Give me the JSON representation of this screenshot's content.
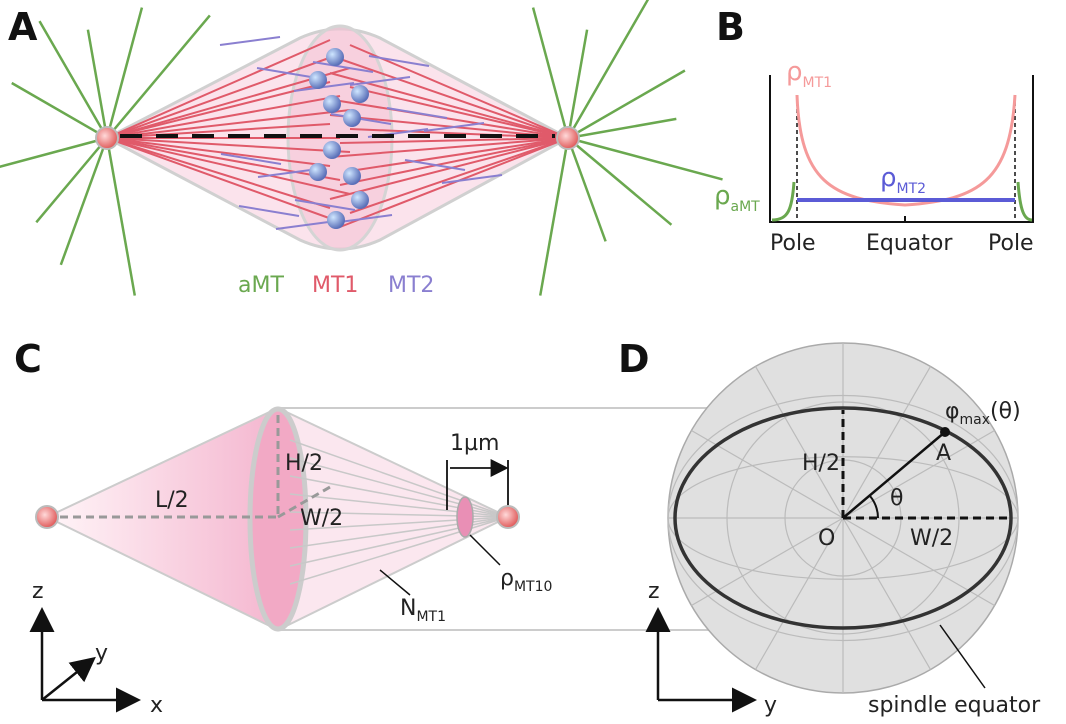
{
  "panels": {
    "A": {
      "label": "A",
      "legend": [
        "aMT",
        "MT1",
        "MT2"
      ]
    },
    "B": {
      "label": "B",
      "rho_mt1": {
        "symbol": "ρ",
        "sub": "MT1"
      },
      "rho_mt2": {
        "symbol": "ρ",
        "sub": "MT2"
      },
      "rho_amt": {
        "symbol": "ρ",
        "sub": "aMT"
      },
      "x_labels": [
        "Pole",
        "Equator",
        "Pole"
      ]
    },
    "C": {
      "label": "C",
      "half_length": "L/2",
      "half_height": "H/2",
      "half_width": "W/2",
      "scale": "1µm",
      "rho": {
        "symbol": "ρ",
        "sub": "MT10"
      },
      "count": {
        "symbol": "N",
        "sub": "MT1"
      },
      "axes": [
        "z",
        "y",
        "x"
      ]
    },
    "D": {
      "label": "D",
      "phi": {
        "symbol": "φ",
        "sub": "max",
        "tail": "(θ)"
      },
      "point": "A",
      "half_height": "H/2",
      "angle": "θ",
      "origin": "O",
      "half_width": "W/2",
      "equator": "spindle equator",
      "axes": [
        "z",
        "y"
      ]
    }
  }
}
